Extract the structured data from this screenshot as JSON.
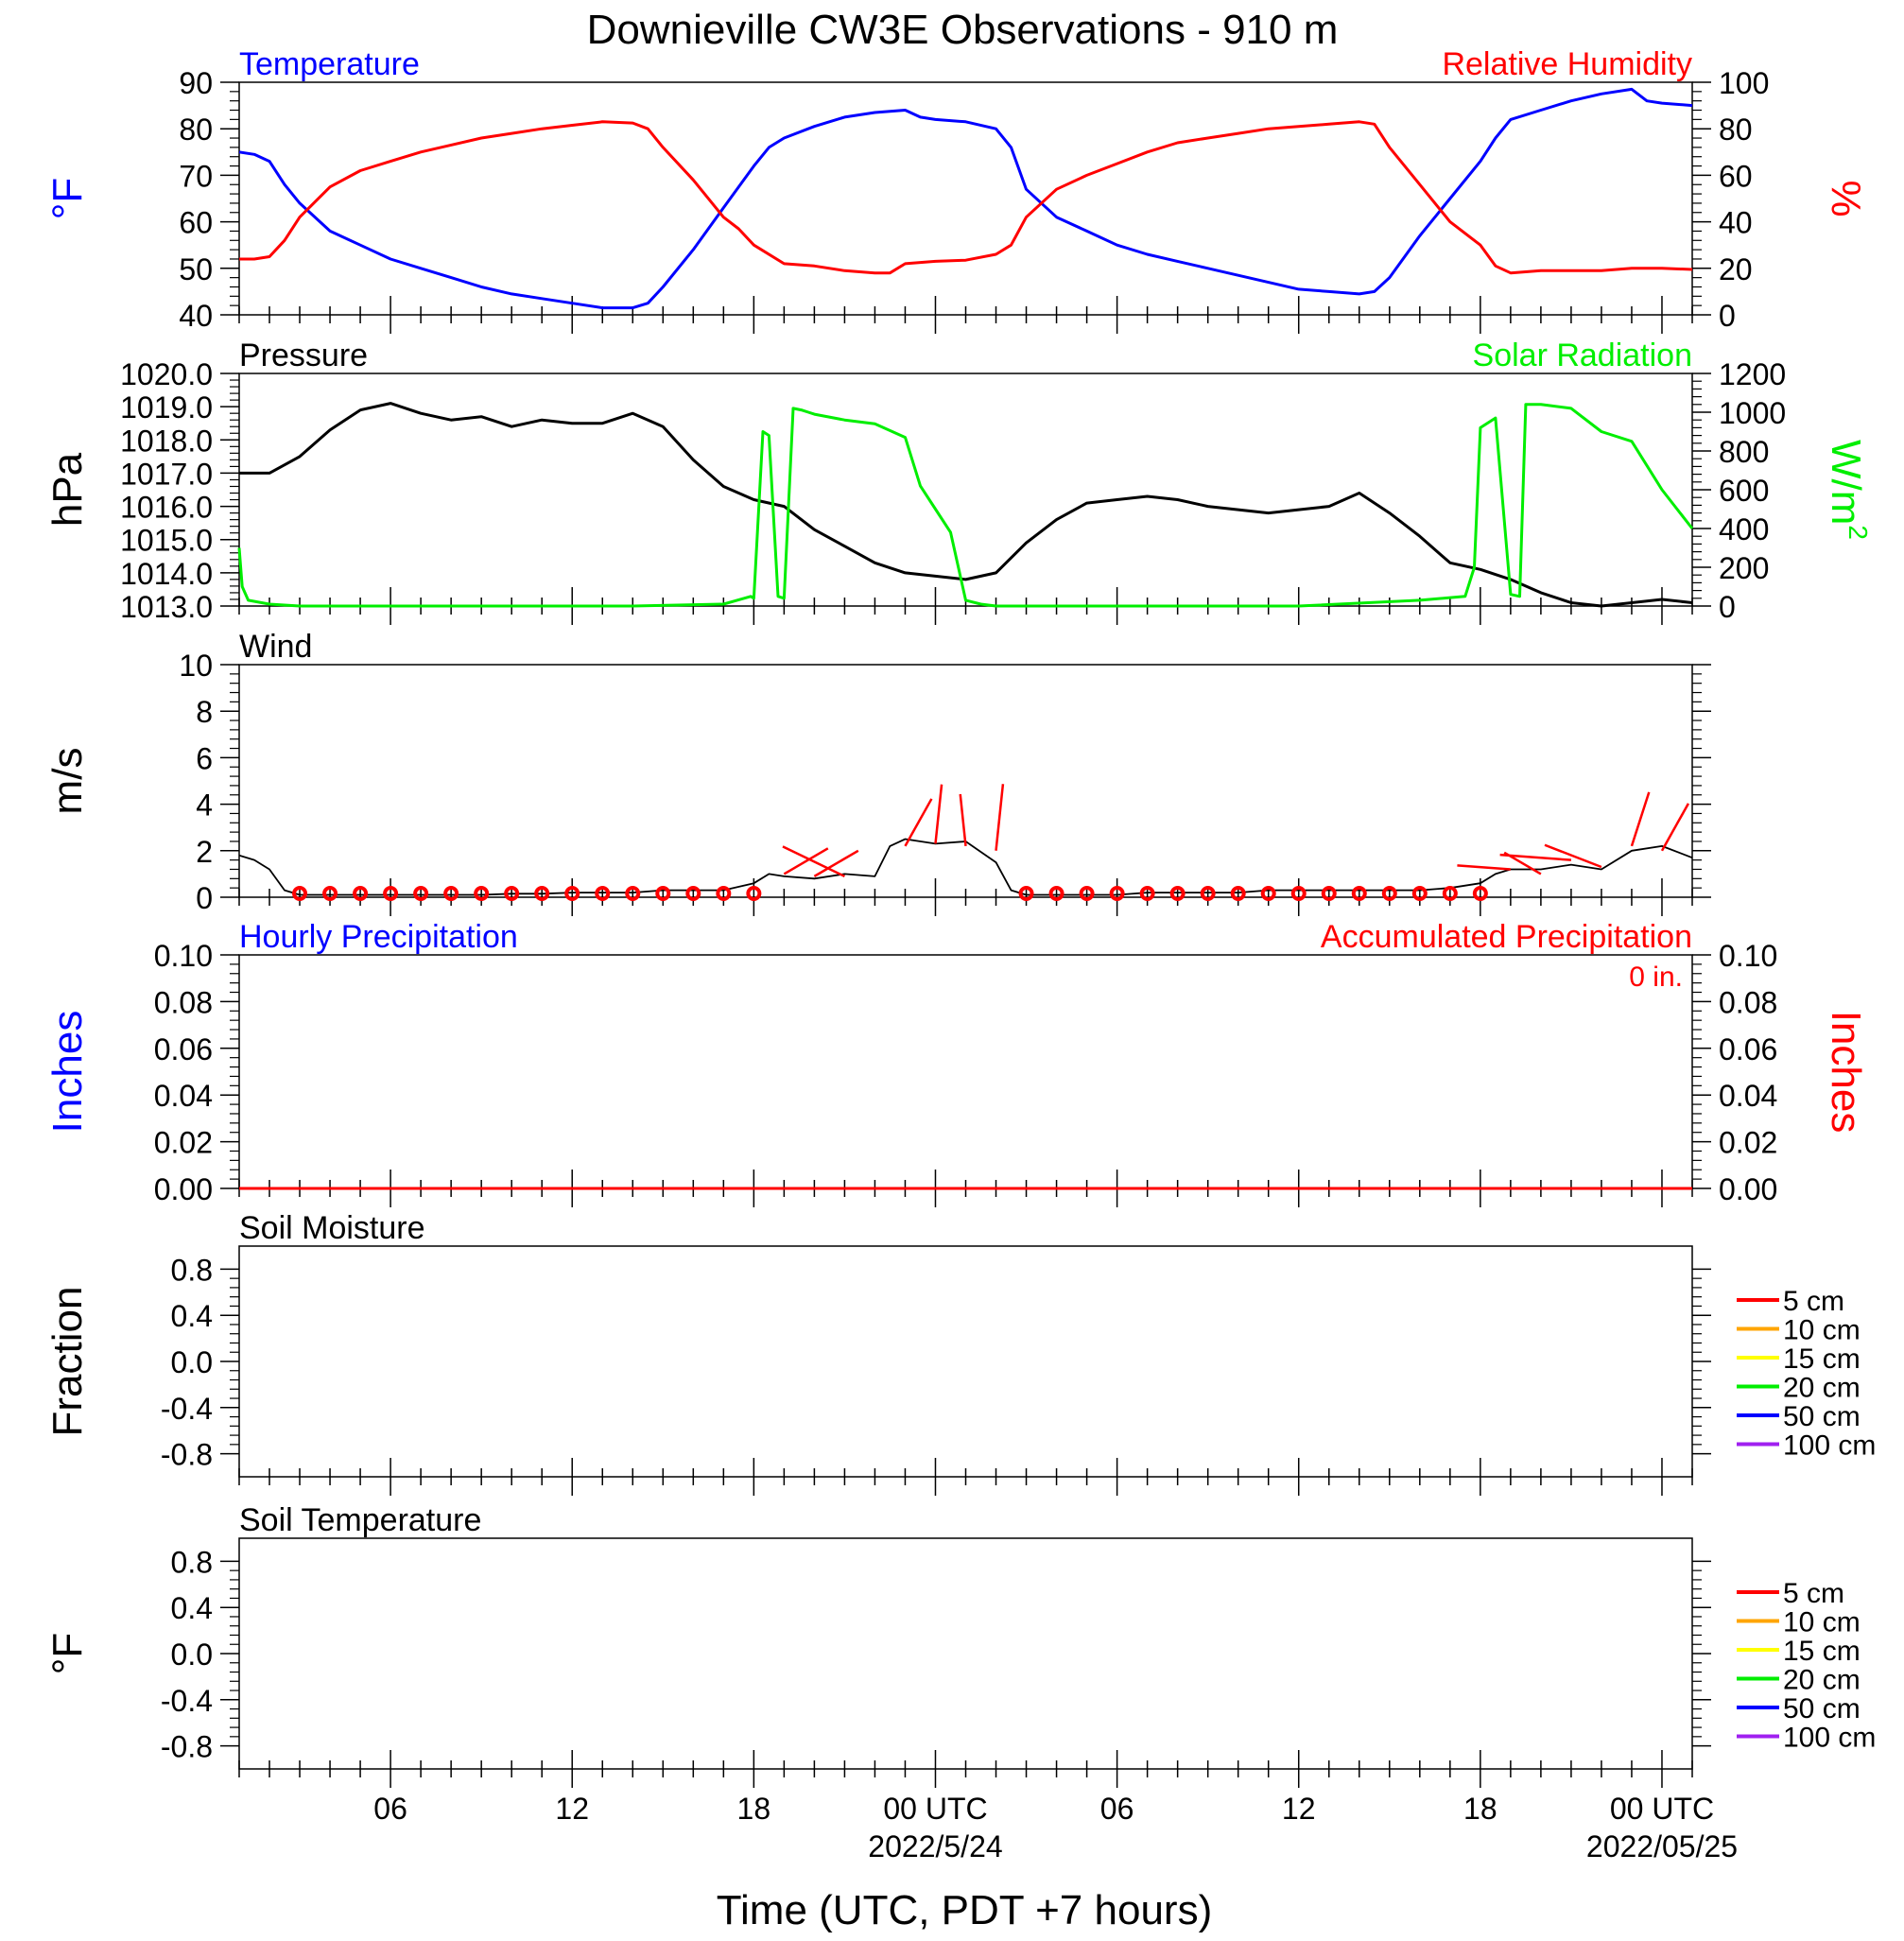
{
  "chart_data": {
    "type": "line",
    "title": "Downieville CW3E Observations - 910 m",
    "xlabel": "Time (UTC, PDT +7 hours)",
    "x_range_hours": [
      1,
      49
    ],
    "x_ticks": [
      {
        "hour": 6,
        "label": "06"
      },
      {
        "hour": 12,
        "label": "12"
      },
      {
        "hour": 18,
        "label": "18"
      },
      {
        "hour": 24,
        "label": "00 UTC",
        "date": "2022/5/24"
      },
      {
        "hour": 30,
        "label": "06"
      },
      {
        "hour": 36,
        "label": "12"
      },
      {
        "hour": 42,
        "label": "18"
      },
      {
        "hour": 48,
        "label": "00 UTC",
        "date": "2022/05/25"
      }
    ],
    "colors": {
      "blue": "#0000ff",
      "red": "#ff0000",
      "green": "#00ee00",
      "black": "#000000",
      "orange": "#ffa500",
      "yellow": "#ffff00",
      "purple": "#a020f0"
    },
    "panels": [
      {
        "name": "temperature-humidity",
        "left_title": "Temperature",
        "left_title_color": "#0000ff",
        "right_title": "Relative Humidity",
        "right_title_color": "#ff0000",
        "ylabel_left": "°F",
        "ylabel_left_color": "#0000ff",
        "ylabel_right": "%",
        "ylabel_right_color": "#ff0000",
        "ylim_left": [
          40,
          90
        ],
        "yticks_left": [
          "40",
          "50",
          "60",
          "70",
          "80",
          "90"
        ],
        "ylim_right": [
          0,
          100
        ],
        "yticks_right": [
          "0",
          "20",
          "40",
          "60",
          "80",
          "100"
        ],
        "series": [
          {
            "name": "Temperature",
            "axis": "left",
            "color": "#0000ff",
            "x": [
              1,
              1.5,
              2,
              2.5,
              3,
              4,
              5,
              6,
              7,
              8,
              9,
              10,
              11,
              12,
              13,
              14,
              14.5,
              15,
              16,
              17,
              18,
              18.5,
              19,
              20,
              21,
              22,
              23,
              23.5,
              24,
              25,
              26,
              26.5,
              27,
              28,
              29,
              30,
              31,
              32,
              33,
              34,
              35,
              36,
              37,
              38,
              38.5,
              39,
              40,
              41,
              42,
              42.5,
              43,
              44,
              45,
              46,
              47,
              47.5,
              48,
              49
            ],
            "y": [
              75,
              74.5,
              73,
              68,
              64,
              58,
              55,
              52,
              50,
              48,
              46,
              44.5,
              43.5,
              42.5,
              41.5,
              41.5,
              42.5,
              46,
              54,
              63,
              72,
              76,
              78,
              80.5,
              82.5,
              83.5,
              84,
              82.5,
              82,
              81.5,
              80,
              76,
              67,
              61,
              58,
              55,
              53,
              51.5,
              50,
              48.5,
              47,
              45.5,
              45,
              44.5,
              45,
              48,
              57,
              65,
              73,
              78,
              82,
              84,
              86,
              87.5,
              88.5,
              86,
              85.5,
              85
            ]
          },
          {
            "name": "Relative Humidity",
            "axis": "right",
            "color": "#ff0000",
            "x": [
              1,
              1.5,
              2,
              2.5,
              3,
              4,
              5,
              6,
              7,
              8,
              9,
              10,
              11,
              12,
              13,
              14,
              14.5,
              15,
              16,
              17,
              17.5,
              18,
              19,
              20,
              21,
              22,
              22.5,
              23,
              24,
              25,
              26,
              26.5,
              27,
              28,
              29,
              30,
              31,
              32,
              33,
              34,
              35,
              36,
              37,
              38,
              38.5,
              39,
              40,
              41,
              42,
              42.5,
              43,
              44,
              45,
              46,
              47,
              48,
              49
            ],
            "y": [
              24,
              24,
              25,
              32,
              42,
              55,
              62,
              66,
              70,
              73,
              76,
              78,
              80,
              81.5,
              83,
              82.5,
              80,
              72,
              58,
              42,
              37,
              30,
              22,
              21,
              19,
              18,
              18,
              22,
              23,
              23.5,
              26,
              30,
              42,
              54,
              60,
              65,
              70,
              74,
              76,
              78,
              80,
              81,
              82,
              83,
              82,
              72,
              56,
              40,
              30,
              21,
              18,
              19,
              19,
              19,
              20,
              20,
              19.5
            ]
          }
        ]
      },
      {
        "name": "pressure-solar",
        "left_title": "Pressure",
        "left_title_color": "#000000",
        "right_title": "Solar Radiation",
        "right_title_color": "#00ee00",
        "ylabel_left": "hPa",
        "ylabel_left_color": "#000000",
        "ylabel_right": "W/m",
        "ylabel_right_sup": "2",
        "ylabel_right_color": "#00ee00",
        "ylim_left": [
          1013,
          1020
        ],
        "yticks_left": [
          "1013.0",
          "1014.0",
          "1015.0",
          "1016.0",
          "1017.0",
          "1018.0",
          "1019.0",
          "1020.0"
        ],
        "ylim_right": [
          0,
          1200
        ],
        "yticks_right": [
          "0",
          "200",
          "400",
          "600",
          "800",
          "1000",
          "1200"
        ],
        "series": [
          {
            "name": "Pressure",
            "axis": "left",
            "color": "#000000",
            "x": [
              1,
              2,
              3,
              4,
              5,
              6,
              7,
              8,
              9,
              10,
              11,
              12,
              13,
              14,
              15,
              16,
              17,
              18,
              19,
              20,
              21,
              22,
              23,
              24,
              25,
              26,
              27,
              28,
              29,
              30,
              31,
              32,
              33,
              34,
              35,
              36,
              37,
              38,
              39,
              40,
              41,
              42,
              43,
              44,
              45,
              46,
              47,
              48,
              49
            ],
            "y": [
              1017.0,
              1017.0,
              1017.5,
              1018.3,
              1018.9,
              1019.1,
              1018.8,
              1018.6,
              1018.7,
              1018.4,
              1018.6,
              1018.5,
              1018.5,
              1018.8,
              1018.4,
              1017.4,
              1016.6,
              1016.2,
              1016.0,
              1015.3,
              1014.8,
              1014.3,
              1014.0,
              1013.9,
              1013.8,
              1014.0,
              1014.9,
              1015.6,
              1016.1,
              1016.2,
              1016.3,
              1016.2,
              1016.0,
              1015.9,
              1015.8,
              1015.9,
              1016.0,
              1016.4,
              1015.8,
              1015.1,
              1014.3,
              1014.1,
              1013.8,
              1013.4,
              1013.1,
              1013.0,
              1013.1,
              1013.2,
              1013.1
            ]
          },
          {
            "name": "Solar Radiation",
            "axis": "right",
            "color": "#00ee00",
            "x": [
              1,
              1.1,
              1.3,
              2,
              3,
              4,
              6,
              10,
              14,
              17,
              17.9,
              18,
              18.3,
              18.5,
              18.8,
              19,
              19.3,
              19.6,
              19.8,
              20,
              21,
              22,
              23,
              23.5,
              24,
              24.5,
              25,
              25.5,
              26,
              28,
              32,
              36,
              40,
              41.5,
              41.8,
              42,
              42.5,
              43,
              43.3,
              43.5,
              43.8,
              44,
              45,
              46,
              47,
              48,
              49
            ],
            "y": [
              300,
              100,
              30,
              10,
              0,
              0,
              0,
              0,
              0,
              10,
              50,
              40,
              900,
              880,
              50,
              40,
              1020,
              1010,
              1000,
              990,
              960,
              940,
              870,
              620,
              500,
              380,
              30,
              10,
              0,
              0,
              0,
              0,
              30,
              50,
              200,
              920,
              970,
              60,
              50,
              1040,
              1040,
              1040,
              1020,
              900,
              850,
              600,
              400
            ]
          }
        ]
      },
      {
        "name": "wind",
        "left_title": "Wind",
        "left_title_color": "#000000",
        "ylabel_left": "m/s",
        "ylabel_left_color": "#000000",
        "ylim_left": [
          0,
          10
        ],
        "yticks_left": [
          "0",
          "2",
          "4",
          "6",
          "8",
          "10"
        ],
        "series": [
          {
            "name": "Wind",
            "axis": "left",
            "color": "#000000",
            "x": [
              1,
              1.5,
              2,
              2.5,
              3,
              4,
              5,
              6,
              7,
              8,
              9,
              10,
              11,
              12,
              13,
              14,
              15,
              16,
              17,
              18,
              18.5,
              19,
              20,
              21,
              22,
              22.5,
              23,
              24,
              25,
              26,
              26.5,
              27,
              28,
              29,
              30,
              31,
              32,
              33,
              34,
              35,
              36,
              37,
              38,
              39,
              40,
              41,
              42,
              42.5,
              43,
              44,
              45,
              46,
              47,
              48,
              49
            ],
            "y": [
              1.8,
              1.6,
              1.2,
              0.3,
              0.1,
              0.1,
              0.1,
              0.1,
              0.1,
              0.1,
              0.1,
              0.15,
              0.15,
              0.2,
              0.2,
              0.2,
              0.3,
              0.3,
              0.3,
              0.6,
              1.0,
              0.9,
              0.8,
              1.0,
              0.9,
              2.2,
              2.5,
              2.3,
              2.4,
              1.5,
              0.3,
              0.1,
              0.1,
              0.1,
              0.1,
              0.2,
              0.2,
              0.2,
              0.2,
              0.3,
              0.3,
              0.3,
              0.3,
              0.3,
              0.3,
              0.4,
              0.6,
              1.0,
              1.2,
              1.2,
              1.4,
              1.2,
              2.0,
              2.2,
              1.7
            ]
          }
        ],
        "calm_markers_hours": [
          3,
          4,
          5,
          6,
          7,
          8,
          9,
          10,
          11,
          12,
          13,
          14,
          15,
          16,
          17,
          18,
          27,
          28,
          29,
          30,
          31,
          32,
          33,
          34,
          35,
          36,
          37,
          38,
          39,
          40,
          41,
          42
        ],
        "barbs": [
          {
            "x": 19,
            "y": 1.0,
            "angle": 55,
            "len": 1.2
          },
          {
            "x": 20,
            "y": 0.9,
            "angle": 55,
            "len": 1.2
          },
          {
            "x": 21,
            "y": 0.9,
            "angle": -60,
            "len": 1.6
          },
          {
            "x": 23,
            "y": 2.2,
            "angle": 25,
            "len": 1.4
          },
          {
            "x": 24,
            "y": 2.3,
            "angle": 5,
            "len": 1.6
          },
          {
            "x": 25,
            "y": 2.2,
            "angle": -5,
            "len": 1.4
          },
          {
            "x": 26,
            "y": 2.0,
            "angle": 5,
            "len": 1.8
          },
          {
            "x": 43,
            "y": 1.2,
            "angle": -85,
            "len": 1.2
          },
          {
            "x": 44,
            "y": 1.0,
            "angle": -55,
            "len": 1.0
          },
          {
            "x": 45,
            "y": 1.6,
            "angle": -85,
            "len": 1.6
          },
          {
            "x": 46,
            "y": 1.3,
            "angle": -65,
            "len": 1.4
          },
          {
            "x": 47,
            "y": 2.2,
            "angle": 15,
            "len": 1.5
          },
          {
            "x": 48,
            "y": 2.0,
            "angle": 25,
            "len": 1.4
          }
        ]
      },
      {
        "name": "precipitation",
        "left_title": "Hourly Precipitation",
        "left_title_color": "#0000ff",
        "right_title": "Accumulated Precipitation",
        "right_title_color": "#ff0000",
        "annotation": "0 in.",
        "annotation_color": "#ff0000",
        "ylabel_left": "Inches",
        "ylabel_left_color": "#0000ff",
        "ylabel_right": "Inches",
        "ylabel_right_color": "#ff0000",
        "ylim_left": [
          0,
          0.1
        ],
        "yticks_left": [
          "0.00",
          "0.02",
          "0.04",
          "0.06",
          "0.08",
          "0.10"
        ],
        "ylim_right": [
          0,
          0.1
        ],
        "yticks_right": [
          "0.00",
          "0.02",
          "0.04",
          "0.06",
          "0.08",
          "0.10"
        ],
        "series": [
          {
            "name": "Accumulated Precipitation",
            "axis": "right",
            "color": "#ff0000",
            "x": [
              1,
              49
            ],
            "y": [
              0,
              0
            ]
          }
        ]
      },
      {
        "name": "soil-moisture",
        "left_title": "Soil Moisture",
        "left_title_color": "#000000",
        "ylabel_left": "Fraction",
        "ylabel_left_color": "#000000",
        "ylim_left": [
          -1,
          1
        ],
        "yticks_left": [
          "-0.8",
          "-0.4",
          "0.0",
          "0.4",
          "0.8"
        ],
        "legend": [
          {
            "label": "5 cm",
            "color": "#ff0000"
          },
          {
            "label": "10 cm",
            "color": "#ffa500"
          },
          {
            "label": "15 cm",
            "color": "#ffff00"
          },
          {
            "label": "20 cm",
            "color": "#00ee00"
          },
          {
            "label": "50 cm",
            "color": "#0000ff"
          },
          {
            "label": "100 cm",
            "color": "#a020f0"
          }
        ],
        "series": []
      },
      {
        "name": "soil-temperature",
        "left_title": "Soil Temperature",
        "left_title_color": "#000000",
        "ylabel_left": "°F",
        "ylabel_left_color": "#000000",
        "ylim_left": [
          -1,
          1
        ],
        "yticks_left": [
          "-0.8",
          "-0.4",
          "0.0",
          "0.4",
          "0.8"
        ],
        "legend": [
          {
            "label": "5 cm",
            "color": "#ff0000"
          },
          {
            "label": "10 cm",
            "color": "#ffa500"
          },
          {
            "label": "15 cm",
            "color": "#ffff00"
          },
          {
            "label": "20 cm",
            "color": "#00ee00"
          },
          {
            "label": "50 cm",
            "color": "#0000ff"
          },
          {
            "label": "100 cm",
            "color": "#a020f0"
          }
        ],
        "series": []
      }
    ]
  }
}
